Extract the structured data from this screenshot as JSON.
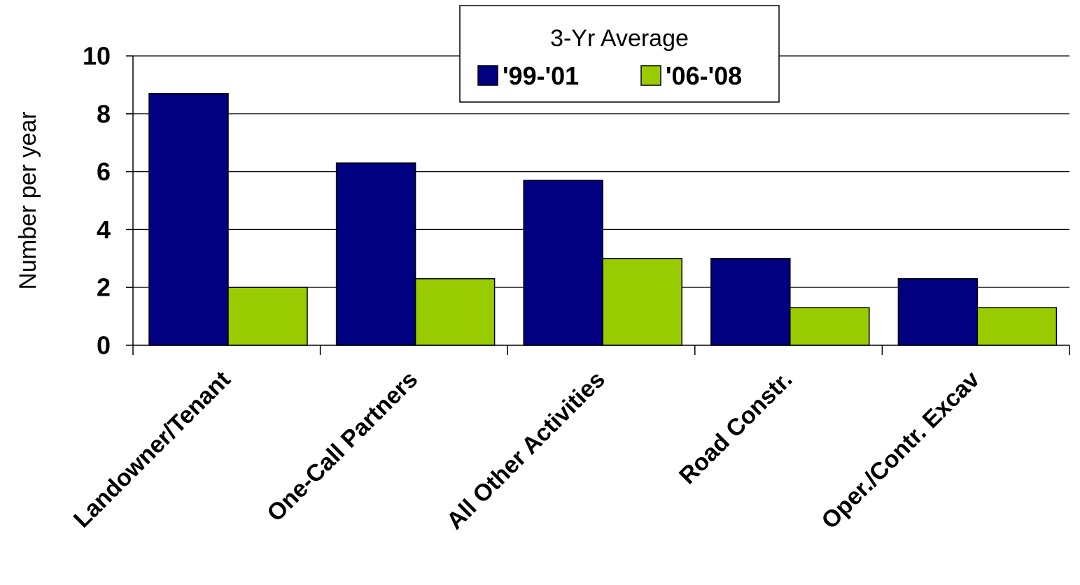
{
  "chart_data": {
    "type": "bar",
    "title": "",
    "xlabel": "",
    "ylabel": "Number per year",
    "ylim": [
      0,
      10
    ],
    "yticks": [
      0,
      2,
      4,
      6,
      8,
      10
    ],
    "grid": true,
    "legend_title": "3-Yr Average",
    "legend_position": "top-right",
    "categories": [
      "Landowner/Tenant",
      "One-Call Partners",
      "All Other Activities",
      "Road Constr.",
      "Oper./Contr. Excav"
    ],
    "series": [
      {
        "name": "'99-'01",
        "color": "#000080",
        "values": [
          8.7,
          6.3,
          5.7,
          3.0,
          2.3
        ]
      },
      {
        "name": "'06-'08",
        "color": "#99CC00",
        "values": [
          2.0,
          2.3,
          3.0,
          1.3,
          1.3
        ]
      }
    ]
  }
}
